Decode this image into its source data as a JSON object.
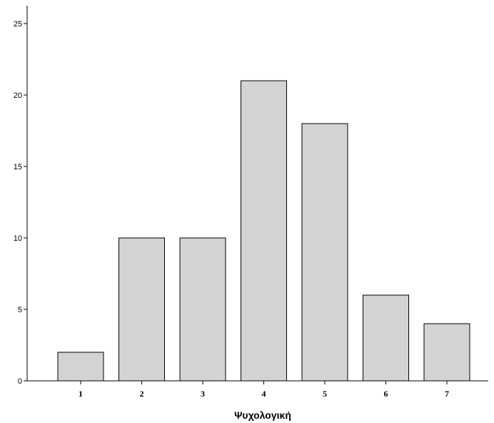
{
  "chart_data": {
    "type": "bar",
    "categories": [
      "1",
      "2",
      "3",
      "4",
      "5",
      "6",
      "7"
    ],
    "values": [
      2,
      10,
      10,
      21,
      18,
      6,
      4
    ],
    "title": "",
    "xlabel": "Ψυχολογική",
    "ylabel": "",
    "ylim": [
      0,
      25
    ],
    "yticks": [
      0,
      5,
      10,
      15,
      20,
      25
    ],
    "grid": false,
    "legend": "none",
    "bar_fill": "#d3d3d3",
    "bar_stroke": "#000000"
  }
}
